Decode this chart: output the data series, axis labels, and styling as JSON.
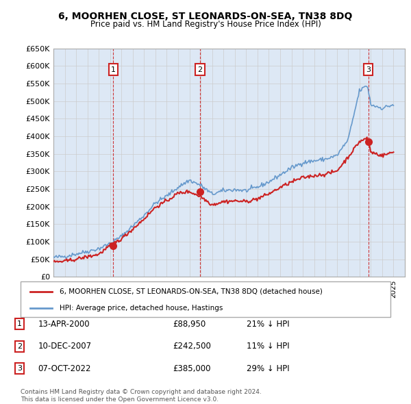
{
  "title": "6, MOORHEN CLOSE, ST LEONARDS-ON-SEA, TN38 8DQ",
  "subtitle": "Price paid vs. HM Land Registry's House Price Index (HPI)",
  "ytick_values": [
    0,
    50000,
    100000,
    150000,
    200000,
    250000,
    300000,
    350000,
    400000,
    450000,
    500000,
    550000,
    600000,
    650000
  ],
  "ylim": [
    0,
    650000
  ],
  "hpi_color": "#6699cc",
  "sale_color": "#cc2222",
  "grid_color": "#cccccc",
  "bg_color": "#dde8f5",
  "sale_points": [
    {
      "year": 2000.28,
      "price": 88950,
      "label": "1"
    },
    {
      "year": 2007.94,
      "price": 242500,
      "label": "2"
    },
    {
      "year": 2022.77,
      "price": 385000,
      "label": "3"
    }
  ],
  "vline_years": [
    2000.28,
    2007.94,
    2022.77
  ],
  "legend_sale": "6, MOORHEN CLOSE, ST LEONARDS-ON-SEA, TN38 8DQ (detached house)",
  "legend_hpi": "HPI: Average price, detached house, Hastings",
  "table_rows": [
    {
      "num": "1",
      "date": "13-APR-2000",
      "price": "£88,950",
      "hpi": "21% ↓ HPI"
    },
    {
      "num": "2",
      "date": "10-DEC-2007",
      "price": "£242,500",
      "hpi": "11% ↓ HPI"
    },
    {
      "num": "3",
      "date": "07-OCT-2022",
      "price": "£385,000",
      "hpi": "29% ↓ HPI"
    }
  ],
  "footer": "Contains HM Land Registry data © Crown copyright and database right 2024.\nThis data is licensed under the Open Government Licence v3.0.",
  "xmin": 1995,
  "xmax": 2026,
  "hpi_keypoints_x": [
    1995,
    1996,
    1997,
    1998,
    1999,
    2000,
    2001,
    2002,
    2003,
    2004,
    2005,
    2006,
    2007,
    2008,
    2009,
    2010,
    2011,
    2012,
    2013,
    2014,
    2015,
    2016,
    2017,
    2018,
    2019,
    2020,
    2021,
    2022,
    2022.7,
    2023,
    2024,
    2025
  ],
  "hpi_keypoints_y": [
    55000,
    58000,
    65000,
    72000,
    80000,
    95000,
    115000,
    145000,
    175000,
    210000,
    230000,
    255000,
    275000,
    260000,
    235000,
    245000,
    248000,
    245000,
    255000,
    270000,
    290000,
    310000,
    325000,
    330000,
    335000,
    345000,
    390000,
    530000,
    545000,
    490000,
    480000,
    490000
  ],
  "sale_keypoints_x": [
    1995,
    1996,
    1997,
    1998,
    1999,
    2000,
    2001,
    2002,
    2003,
    2004,
    2005,
    2006,
    2007,
    2008,
    2009,
    2010,
    2011,
    2012,
    2013,
    2014,
    2015,
    2016,
    2017,
    2018,
    2019,
    2020,
    2021,
    2022,
    2022.7,
    2023,
    2024,
    2025
  ],
  "sale_keypoints_y": [
    42000,
    44000,
    50000,
    57000,
    64000,
    88950,
    108000,
    136000,
    165000,
    198000,
    216000,
    238000,
    242500,
    228000,
    205000,
    214000,
    216000,
    214000,
    222000,
    236000,
    254000,
    270000,
    282000,
    288000,
    292000,
    301000,
    341000,
    385000,
    395000,
    355000,
    345000,
    355000
  ]
}
